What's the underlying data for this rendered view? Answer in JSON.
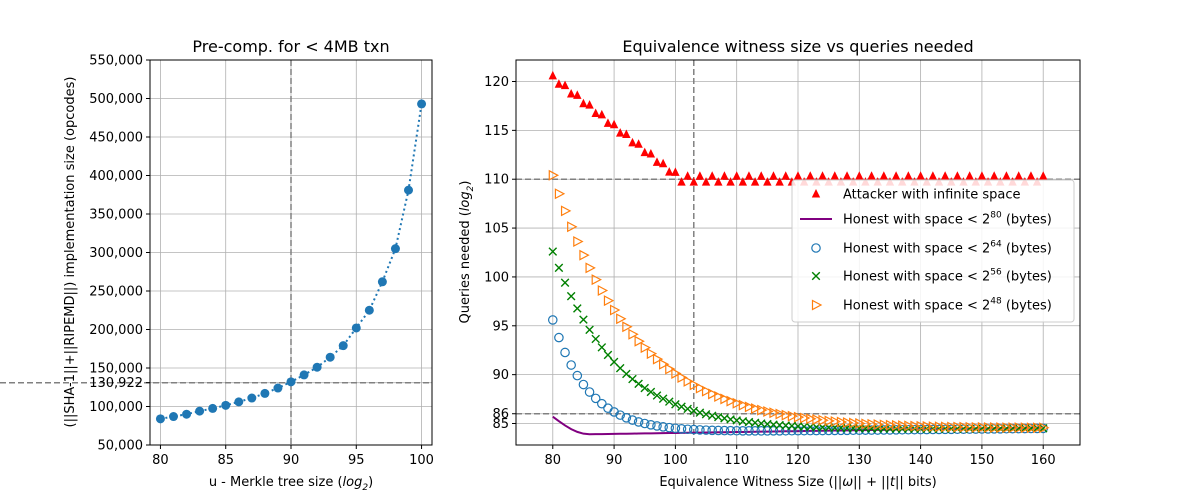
{
  "chart_data": [
    {
      "type": "scatter",
      "title": "Pre-comp. for < 4MB txn",
      "xlabel": "u - Merkle tree size (log2)",
      "ylabel": "(||SHA-1||+||RIPEMD||) implementation size (opcodes)",
      "xlim": [
        79.2,
        100.8
      ],
      "ylim": [
        50000,
        550000
      ],
      "xticks": [
        80,
        85,
        90,
        95,
        100
      ],
      "yticks": [
        50000,
        100000,
        130922,
        150000,
        200000,
        250000,
        300000,
        350000,
        400000,
        450000,
        500000,
        550000
      ],
      "ytick_labels": [
        "50,000",
        "100,000",
        "130,922",
        "150,000",
        "200,000",
        "250,000",
        "300,000",
        "350,000",
        "400,000",
        "450,000",
        "500,000",
        "550,000"
      ],
      "grid": true,
      "reference_lines": {
        "vertical_x": 90,
        "horizontal_y": 130922
      },
      "series": [
        {
          "marker_color": "#1f77b4",
          "line_style": "dotted",
          "x": [
            80,
            81,
            82,
            83,
            84,
            85,
            86,
            87,
            88,
            89,
            90,
            91,
            92,
            93,
            94,
            95,
            96,
            97,
            98,
            99,
            100
          ],
          "y": [
            84000,
            87000,
            90000,
            94000,
            97500,
            101500,
            106000,
            111000,
            117000,
            124000,
            132000,
            141000,
            151000,
            164000,
            179000,
            202000,
            225000,
            262000,
            305000,
            381000,
            493000
          ]
        }
      ]
    },
    {
      "type": "scatter",
      "title": "Equivalence witness size vs queries needed",
      "xlabel": "Equivalence Witness Size (||ω|| + ||t|| bits)",
      "ylabel": "Queries needed (log2)",
      "xlim": [
        74,
        166
      ],
      "ylim": [
        82.8,
        122.2
      ],
      "xticks": [
        80,
        90,
        100,
        110,
        120,
        130,
        140,
        150,
        160
      ],
      "yticks": [
        85,
        86,
        90,
        95,
        100,
        105,
        110,
        115,
        120
      ],
      "grid": true,
      "reference_lines": {
        "vertical_x": 103,
        "horizontal_y": [
          110,
          86
        ]
      },
      "legend_placement": "center-right",
      "x_range": [
        80,
        160
      ],
      "series": [
        {
          "name": "Attacker with infinite space",
          "color": "#ff0000",
          "marker": "triangle-up",
          "x_start": 80,
          "x_end": 160,
          "decline_from": 120.4,
          "decline_slope": -0.5,
          "plateau": 110,
          "zigzag": 0.3
        },
        {
          "name": "Honest with space < 2^80 (bytes)",
          "color": "#800080",
          "marker": "line",
          "x_start": 80,
          "x_end": 160,
          "start": 85.7,
          "floor": 83.9,
          "floor_at": 86,
          "end": 84.6
        },
        {
          "name": "Honest with space < 2^64 (bytes)",
          "color": "#1f77b4",
          "marker": "circle-open",
          "x_start": 80,
          "x_end": 160,
          "start": 95.6,
          "decay": 0.17,
          "floor": 84.0,
          "end": 84.5
        },
        {
          "name": "Honest with space < 2^56 (bytes)",
          "color": "#008000",
          "marker": "x",
          "x_start": 80,
          "x_end": 160,
          "start": 102.6,
          "decay": 0.095,
          "floor": 84.1,
          "end": 84.5
        },
        {
          "name": "Honest with space < 2^48 (bytes)",
          "color": "#ff7f0e",
          "marker": "triangle-right-open",
          "x_start": 80,
          "x_end": 160,
          "start": 110.4,
          "decay": 0.075,
          "floor": 84.2,
          "end": 84.5
        }
      ]
    }
  ]
}
